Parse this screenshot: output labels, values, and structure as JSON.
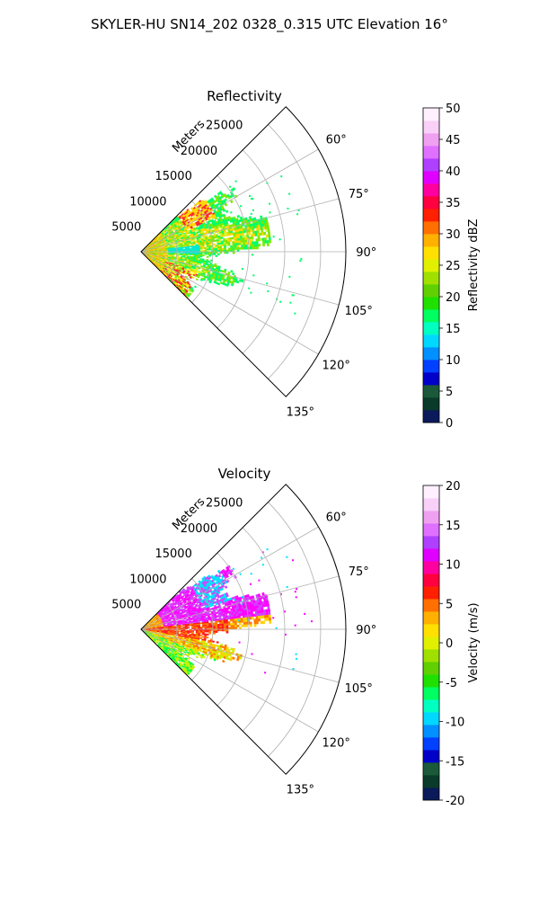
{
  "figure": {
    "title": "SKYLER-HU  SN14_202  0328_0.315 UTC Elevation 16°",
    "background": "#ffffff"
  },
  "chart_data": [
    {
      "type": "polar-sector",
      "title": "Reflectivity",
      "range_label": "Meters",
      "range_ticks": [
        5000,
        10000,
        15000,
        20000,
        25000
      ],
      "range_max": 28500,
      "azimuth_range_deg": [
        45,
        135
      ],
      "azimuth_ticks": [
        "60°",
        "75°",
        "90°",
        "105°",
        "120°",
        "135°"
      ],
      "colorbar": {
        "label": "Reflectivity dBZ",
        "min": 0,
        "max": 50,
        "ticks": [
          0,
          5,
          10,
          15,
          20,
          25,
          30,
          35,
          40,
          45,
          50
        ],
        "stops": [
          "#0a1a5a",
          "#0a3a2a",
          "#1a5a3a",
          "#0000c8",
          "#0040ff",
          "#0090ff",
          "#00d8ff",
          "#00ffc0",
          "#00ff60",
          "#20e000",
          "#60d000",
          "#a0e000",
          "#e0f000",
          "#ffe000",
          "#ffb000",
          "#ff7000",
          "#ff2000",
          "#ff0040",
          "#ff00a0",
          "#e000ff",
          "#b040ff",
          "#e070ff",
          "#f0a0f0",
          "#f8d0f8",
          "#fff0ff"
        ]
      },
      "field_palette": [
        "#00ff66",
        "#7ee800",
        "#c8ff40",
        "#ffd700",
        "#ffee00",
        "#ff2828",
        "#00e8d0",
        "#ff9900"
      ]
    },
    {
      "type": "polar-sector",
      "title": "Velocity",
      "range_label": "Meters",
      "range_ticks": [
        5000,
        10000,
        15000,
        20000,
        25000
      ],
      "range_max": 28500,
      "azimuth_range_deg": [
        45,
        135
      ],
      "azimuth_ticks": [
        "60°",
        "75°",
        "90°",
        "105°",
        "120°",
        "135°"
      ],
      "colorbar": {
        "label": "Velocity (m/s)",
        "min": -20,
        "max": 20,
        "ticks": [
          -20,
          -15,
          -10,
          -5,
          0,
          5,
          10,
          15,
          20
        ],
        "stops": [
          "#0a1a5a",
          "#0a3a2a",
          "#1a5a3a",
          "#0000c8",
          "#0040ff",
          "#0090ff",
          "#00d8ff",
          "#00ffc0",
          "#00ff60",
          "#20e000",
          "#60d000",
          "#a0e000",
          "#e0f000",
          "#ffe000",
          "#ffb000",
          "#ff7000",
          "#ff2000",
          "#ff0040",
          "#ff00a0",
          "#e000ff",
          "#b040ff",
          "#e070ff",
          "#f0a0f0",
          "#f8d0f8",
          "#fff0ff"
        ]
      },
      "field_palette": [
        "#ff00ff",
        "#cc44ff",
        "#ff1a1a",
        "#ff7a00",
        "#ffd000",
        "#c8f000",
        "#00ff40",
        "#00e0ff"
      ]
    }
  ]
}
